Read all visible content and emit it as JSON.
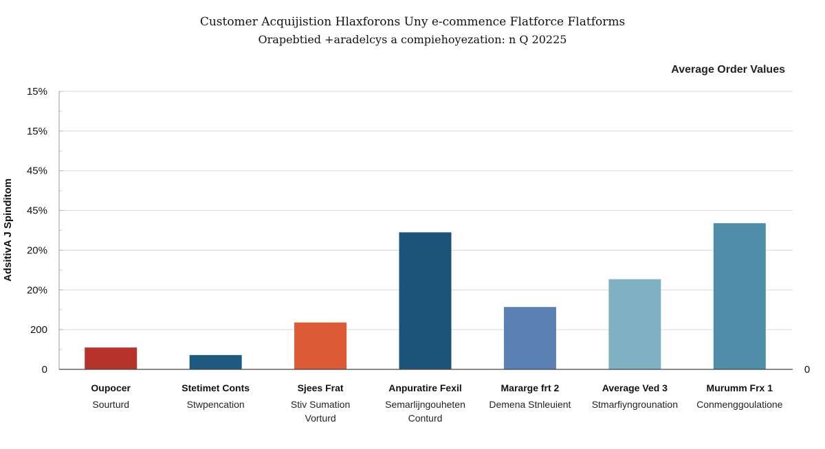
{
  "chart_data": {
    "type": "bar",
    "title": "Customer Acquijistion Hlaxforons Uny e-commence Flatforce Flatforms",
    "subtitle": "Orapebtied +aradelcys a compiehoyezation: n Q 20225",
    "legend": "Average Order Values",
    "legend_position": "top-right",
    "ylabel": "AdsitivA J Spinditom",
    "right_axis_tick": "0",
    "y_ticks": [
      "0",
      "200",
      "20%",
      "20%",
      "45%",
      "45%",
      "15%",
      "15%"
    ],
    "ylim": [
      0,
      7
    ],
    "grid": true,
    "categories": [
      {
        "line1": "Oupocer",
        "line2": "Sourturd",
        "line3": ""
      },
      {
        "line1": "Stetimet Conts",
        "line2": "Stwpencation",
        "line3": ""
      },
      {
        "line1": "Sjees Frat",
        "line2": "Stiv Sumation",
        "line3": "Vorturd"
      },
      {
        "line1": "Anpuratire Fexil",
        "line2": "Semarlijngouheten",
        "line3": "Conturd"
      },
      {
        "line1": "Mararge frt 2",
        "line2": "Demena Stnleuient",
        "line3": ""
      },
      {
        "line1": "Average Ved 3",
        "line2": "Stmarfiyngrounation",
        "line3": ""
      },
      {
        "line1": "Murumm Frx 1",
        "line2": "Conmenggoulatione",
        "line3": ""
      }
    ],
    "values": [
      0.55,
      0.36,
      1.18,
      3.45,
      1.57,
      2.27,
      3.68
    ],
    "colors": [
      "#b8322c",
      "#1e5a80",
      "#dc5a36",
      "#1c5378",
      "#5b80b3",
      "#7fb1c3",
      "#4f8ea9"
    ]
  }
}
